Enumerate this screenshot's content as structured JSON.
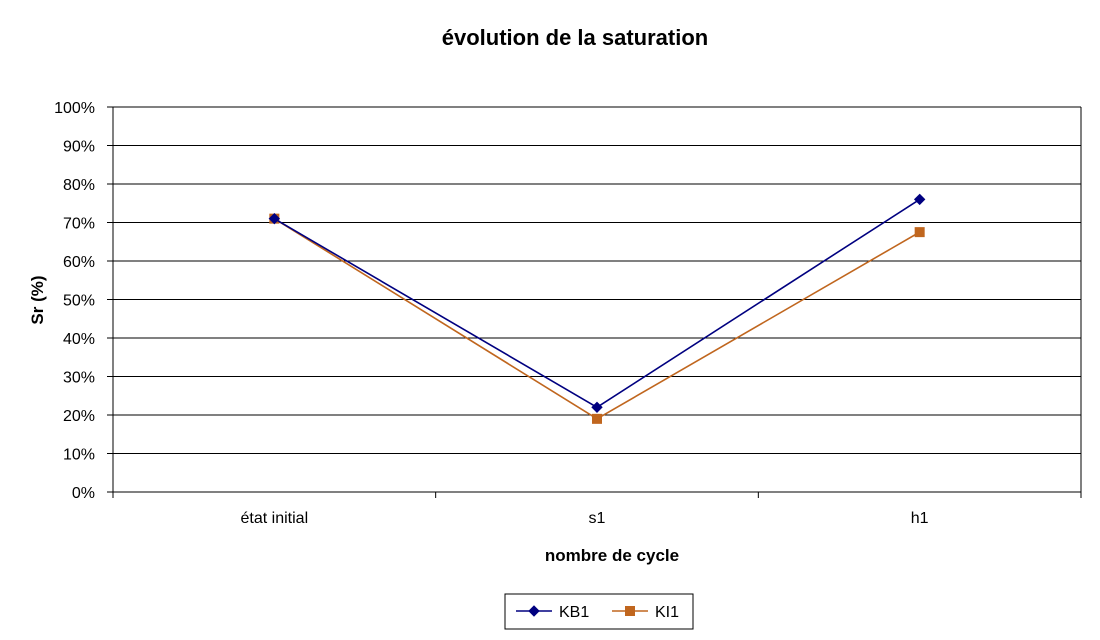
{
  "chart_data": {
    "type": "line",
    "title": "évolution de la saturation",
    "xlabel": "nombre de cycle",
    "ylabel": "Sr (%)",
    "categories": [
      "état initial",
      "s1",
      "h1"
    ],
    "ylim": [
      0,
      100
    ],
    "yticks": [
      "0%",
      "10%",
      "20%",
      "30%",
      "40%",
      "50%",
      "60%",
      "70%",
      "80%",
      "90%",
      "100%"
    ],
    "grid": true,
    "legend_position": "bottom",
    "series": [
      {
        "name": "KB1",
        "values": [
          71,
          22,
          76
        ],
        "color": "#000080",
        "marker": "diamond"
      },
      {
        "name": "KI1",
        "values": [
          71,
          19,
          67.5
        ],
        "color": "#C0661E",
        "marker": "square"
      }
    ]
  }
}
